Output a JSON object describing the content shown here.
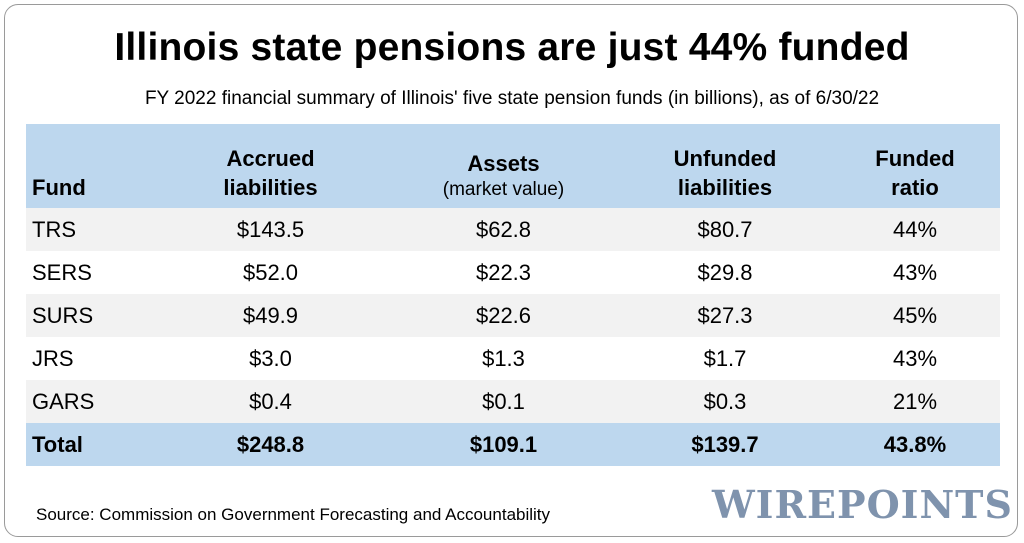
{
  "title": "Illinois state pensions are just 44% funded",
  "subtitle": "FY 2022 financial summary of Illinois' five state pension funds (in billions), as of 6/30/22",
  "source": "Source: Commission on Government Forecasting and Accountability",
  "logo": "WIREPOINTS",
  "colors": {
    "header_bg": "#bdd7ee",
    "stripe_bg": "#f2f2f2",
    "logo": "#7f93ad"
  },
  "chart_data": {
    "type": "table",
    "columns": [
      {
        "line1": "",
        "line2": "Fund",
        "sub": ""
      },
      {
        "line1": "Accrued",
        "line2": "liabilities",
        "sub": ""
      },
      {
        "line1": "Assets",
        "line2": "",
        "sub": "(market value)"
      },
      {
        "line1": "Unfunded",
        "line2": "liabilities",
        "sub": ""
      },
      {
        "line1": "Funded",
        "line2": "ratio",
        "sub": ""
      }
    ],
    "rows": [
      [
        "TRS",
        "$143.5",
        "$62.8",
        "$80.7",
        "44%"
      ],
      [
        "SERS",
        "$52.0",
        "$22.3",
        "$29.8",
        "43%"
      ],
      [
        "SURS",
        "$49.9",
        "$22.6",
        "$27.3",
        "45%"
      ],
      [
        "JRS",
        "$3.0",
        "$1.3",
        "$1.7",
        "43%"
      ],
      [
        "GARS",
        "$0.4",
        "$0.1",
        "$0.3",
        "21%"
      ]
    ],
    "total": [
      "Total",
      "$248.8",
      "$109.1",
      "$139.7",
      "43.8%"
    ]
  }
}
